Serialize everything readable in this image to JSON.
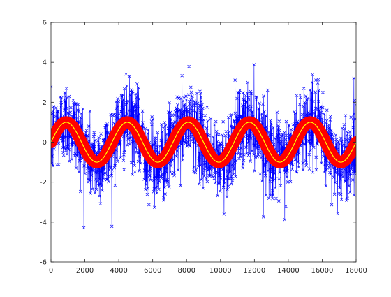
{
  "chart_data": {
    "type": "line",
    "title": "",
    "xlabel": "",
    "ylabel": "",
    "xlim": [
      0,
      18000
    ],
    "ylim": [
      -6,
      6
    ],
    "xticks": [
      0,
      2000,
      4000,
      6000,
      8000,
      10000,
      12000,
      14000,
      16000,
      18000
    ],
    "yticks": [
      -6,
      -4,
      -2,
      0,
      2,
      4,
      6
    ],
    "xtick_labels": [
      "0",
      "2000",
      "4000",
      "6000",
      "8000",
      "10000",
      "12000",
      "14000",
      "16000",
      "18000"
    ],
    "ytick_labels": [
      "-6",
      "-4",
      "-2",
      "0",
      "2",
      "4",
      "6"
    ],
    "grid": false,
    "legend": "none",
    "series": [
      {
        "style": "blue line with x markers (noisy samples)",
        "color": "#0000ff",
        "marker": "x",
        "period": 3600,
        "amplitude": 1,
        "noise_std": 1.0,
        "max_observed": 5.0,
        "min_observed": -4.6,
        "x_range": [
          0,
          18000
        ]
      },
      {
        "style": "red thick band (smoothed estimate)",
        "color": "#ff0000",
        "period": 3600,
        "amplitude": 1,
        "band_halfwidth": 0.3,
        "x_range": [
          0,
          18000
        ]
      },
      {
        "style": "yellow thin line (true signal)",
        "color": "#ffff00",
        "period": 3600,
        "amplitude": 1,
        "x_range": [
          0,
          18000
        ]
      }
    ]
  }
}
